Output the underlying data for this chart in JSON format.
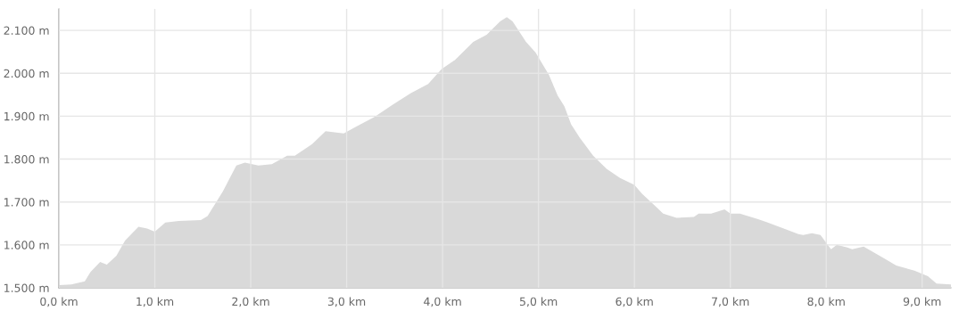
{
  "chart_data": {
    "type": "area",
    "x": [
      0,
      0.13,
      0.27,
      0.33,
      0.43,
      0.5,
      0.6,
      0.69,
      0.83,
      0.92,
      1.0,
      1.11,
      1.25,
      1.48,
      1.55,
      1.71,
      1.85,
      1.94,
      2.08,
      2.22,
      2.38,
      2.46,
      2.64,
      2.78,
      2.97,
      3.11,
      3.29,
      3.48,
      3.67,
      3.85,
      3.99,
      4.13,
      4.32,
      4.46,
      4.6,
      4.67,
      4.73,
      4.87,
      4.97,
      5.11,
      5.2,
      5.27,
      5.34,
      5.43,
      5.57,
      5.71,
      5.85,
      6.0,
      6.08,
      6.22,
      6.3,
      6.44,
      6.62,
      6.67,
      6.8,
      6.94,
      7.0,
      7.1,
      7.29,
      7.39,
      7.57,
      7.71,
      7.76,
      7.85,
      7.94,
      8.01,
      8.05,
      8.11,
      8.22,
      8.27,
      8.39,
      8.6,
      8.73,
      8.92,
      9.06,
      9.15,
      9.3
    ],
    "series": [
      {
        "color": "#d9d9d9",
        "values": [
          1506,
          1508,
          1515,
          1537,
          1560,
          1554,
          1575,
          1610,
          1642,
          1638,
          1631,
          1652,
          1656,
          1658,
          1667,
          1725,
          1785,
          1792,
          1785,
          1788,
          1808,
          1808,
          1835,
          1865,
          1860,
          1877,
          1898,
          1927,
          1954,
          1975,
          2010,
          2031,
          2073,
          2090,
          2121,
          2131,
          2121,
          2073,
          2048,
          1996,
          1948,
          1923,
          1881,
          1850,
          1808,
          1777,
          1756,
          1740,
          1719,
          1690,
          1673,
          1663,
          1665,
          1673,
          1673,
          1683,
          1673,
          1673,
          1660,
          1652,
          1637,
          1625,
          1623,
          1627,
          1623,
          1602,
          1590,
          1600,
          1594,
          1590,
          1596,
          1569,
          1552,
          1540,
          1527,
          1510,
          1508
        ]
      }
    ],
    "xlim": [
      0,
      9.3
    ],
    "xticks": [
      {
        "value": 0,
        "label": "0,0 km"
      },
      {
        "value": 1,
        "label": "1,0 km"
      },
      {
        "value": 2,
        "label": "2,0 km"
      },
      {
        "value": 3,
        "label": "3,0 km"
      },
      {
        "value": 4,
        "label": "4,0 km"
      },
      {
        "value": 5,
        "label": "5,0 km"
      },
      {
        "value": 6,
        "label": "6,0 km"
      },
      {
        "value": 7,
        "label": "7,0 km"
      },
      {
        "value": 8,
        "label": "8,0 km"
      },
      {
        "value": 9,
        "label": "9,0 km"
      }
    ],
    "ylim": [
      1500,
      2150
    ],
    "yticks": [
      {
        "value": 1500,
        "label": "1.500 m"
      },
      {
        "value": 1600,
        "label": "1.600 m"
      },
      {
        "value": 1700,
        "label": "1.700 m"
      },
      {
        "value": 1800,
        "label": "1.800 m"
      },
      {
        "value": 1900,
        "label": "1.900 m"
      },
      {
        "value": 2000,
        "label": "2.000 m"
      },
      {
        "value": 2100,
        "label": "2.100 m"
      }
    ],
    "grid": true,
    "legend": false
  }
}
